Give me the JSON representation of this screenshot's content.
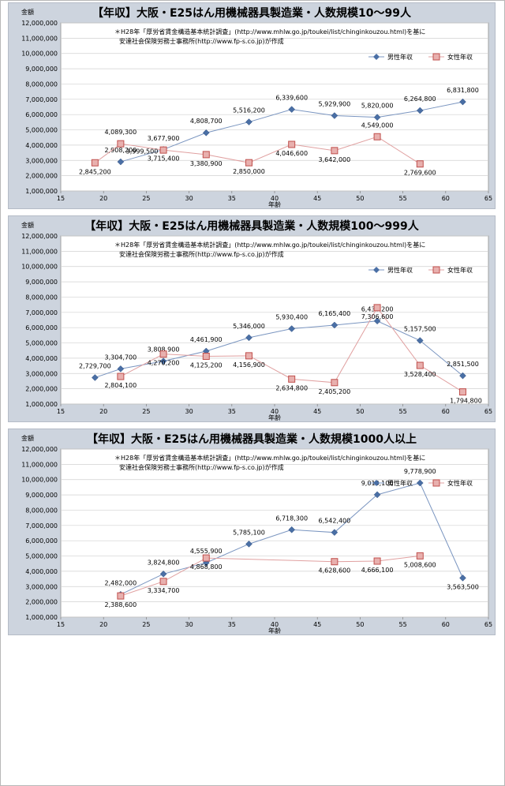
{
  "chart_data": [
    {
      "type": "line",
      "title": "【年収】大阪・E25はん用機械器具製造業・人数規模10～99人",
      "note": [
        "＊H28年「厚労省賃金構造基本統計調査」(http://www.mhlw.go.jp/toukei/list/chinginkouzou.html)を基に",
        "安達社会保険労務士事務所(http://www.fp-s.co.jp)が作成"
      ],
      "ylabel": "金額",
      "xlabel": "年齢",
      "xlim": [
        15,
        65
      ],
      "ylim": [
        1000000,
        12000000
      ],
      "x_ticks": [
        15,
        20,
        25,
        30,
        35,
        40,
        45,
        50,
        55,
        60,
        65
      ],
      "y_ticks": [
        "1,000,000",
        "2,000,000",
        "3,000,000",
        "4,000,000",
        "5,000,000",
        "6,000,000",
        "7,000,000",
        "8,000,000",
        "9,000,000",
        "10,000,000",
        "11,000,000",
        "12,000,000"
      ],
      "grid": true,
      "legend": "top-right",
      "series": [
        {
          "name": "男性年収",
          "color": "#4a6fa5",
          "marker": "diamond",
          "x": [
            22,
            27,
            32,
            37,
            42,
            47,
            52,
            57,
            62
          ],
          "values": [
            2908200,
            3715400,
            4808700,
            5516200,
            6339600,
            5929900,
            5820000,
            6264800,
            6831800
          ],
          "labels": [
            "2,908,200",
            "3,715,400",
            "4,808,700",
            "5,516,200",
            "6,339,600",
            "5,929,900",
            "5,820,000",
            "6,264,800",
            "6,831,800"
          ]
        },
        {
          "name": "女性年収",
          "color": "#c0504d",
          "marker": "square",
          "x": [
            19,
            22,
            27,
            32,
            37,
            42,
            47,
            52,
            57
          ],
          "values": [
            2845200,
            4089300,
            3677900,
            3380900,
            2850000,
            4046600,
            3642000,
            4549000,
            2769600
          ],
          "labels": [
            "2,845,200",
            "4,089,300",
            "3,677,900",
            "3,380,900",
            "2,850,000",
            "4,046,600",
            "3,642,000",
            "4,549,000",
            "2,769,600"
          ],
          "extra_label": "3,999,500"
        }
      ]
    },
    {
      "type": "line",
      "title": "【年収】大阪・E25はん用機械器具製造業・人数規模100～999人",
      "note": [
        "＊H28年「厚労省賃金構造基本統計調査」(http://www.mhlw.go.jp/toukei/list/chinginkouzou.html)を基に",
        "安達社会保険労務士事務所(http://www.fp-s.co.jp)が作成"
      ],
      "ylabel": "金額",
      "xlabel": "年齢",
      "xlim": [
        15,
        65
      ],
      "ylim": [
        1000000,
        12000000
      ],
      "x_ticks": [
        15,
        20,
        25,
        30,
        35,
        40,
        45,
        50,
        55,
        60,
        65
      ],
      "y_ticks": [
        "1,000,000",
        "2,000,000",
        "3,000,000",
        "4,000,000",
        "5,000,000",
        "6,000,000",
        "7,000,000",
        "8,000,000",
        "9,000,000",
        "10,000,000",
        "11,000,000",
        "12,000,000"
      ],
      "grid": true,
      "legend": "top-right",
      "series": [
        {
          "name": "男性年収",
          "color": "#4a6fa5",
          "marker": "diamond",
          "x": [
            19,
            22,
            27,
            32,
            37,
            42,
            47,
            52,
            57,
            62
          ],
          "values": [
            2729700,
            3304700,
            3808900,
            4461900,
            5346000,
            5930400,
            6165400,
            6436200,
            5157500,
            2851500
          ],
          "labels": [
            "2,729,700",
            "3,304,700",
            "3,808,900",
            "4,461,900",
            "5,346,000",
            "5,930,400",
            "6,165,400",
            "6,436,200",
            "5,157,500",
            "2,851,500"
          ]
        },
        {
          "name": "女性年収",
          "color": "#c0504d",
          "marker": "square",
          "x": [
            22,
            27,
            32,
            37,
            42,
            47,
            52,
            57,
            62
          ],
          "values": [
            2804100,
            4270200,
            4125200,
            4156900,
            2634800,
            2405200,
            7306600,
            3528400,
            1794800
          ],
          "labels": [
            "2,804,100",
            "4,270,200",
            "4,125,200",
            "4,156,900",
            "2,634,800",
            "2,405,200",
            "7,306,600",
            "3,528,400",
            "1,794,800"
          ]
        }
      ]
    },
    {
      "type": "line",
      "title": "【年収】大阪・E25はん用機械器具製造業・人数規模1000人以上",
      "note": [
        "＊H28年「厚労省賃金構造基本統計調査」(http://www.mhlw.go.jp/toukei/list/chinginkouzou.html)を基に",
        "安達社会保険労務士事務所(http://www.fp-s.co.jp)が作成"
      ],
      "ylabel": "金額",
      "xlabel": "年齢",
      "xlim": [
        15,
        65
      ],
      "ylim": [
        1000000,
        12000000
      ],
      "x_ticks": [
        15,
        20,
        25,
        30,
        35,
        40,
        45,
        50,
        55,
        60,
        65
      ],
      "y_ticks": [
        "1,000,000",
        "2,000,000",
        "3,000,000",
        "4,000,000",
        "5,000,000",
        "6,000,000",
        "7,000,000",
        "8,000,000",
        "9,000,000",
        "10,000,000",
        "11,000,000",
        "12,000,000"
      ],
      "grid": true,
      "legend": "top-right",
      "series": [
        {
          "name": "男性年収",
          "color": "#4a6fa5",
          "marker": "diamond",
          "x": [
            22,
            27,
            32,
            37,
            42,
            47,
            52,
            57,
            62
          ],
          "values": [
            2482000,
            3824800,
            4555900,
            5785100,
            6718300,
            6542400,
            9013100,
            9778900,
            3563500
          ],
          "labels": [
            "2,482,000",
            "3,824,800",
            "4,555,900",
            "5,785,100",
            "6,718,300",
            "6,542,400",
            "9,013,100",
            "9,778,900",
            "3,563,500"
          ]
        },
        {
          "name": "女性年収",
          "color": "#c0504d",
          "marker": "square",
          "x": [
            22,
            27,
            32,
            47,
            52,
            57
          ],
          "values": [
            2388600,
            3334700,
            4868800,
            4628600,
            4666100,
            5008600
          ],
          "labels": [
            "2,388,600",
            "3,334,700",
            "4,868,800",
            "4,628,600",
            "4,666,100",
            "5,008,600"
          ]
        }
      ]
    }
  ]
}
